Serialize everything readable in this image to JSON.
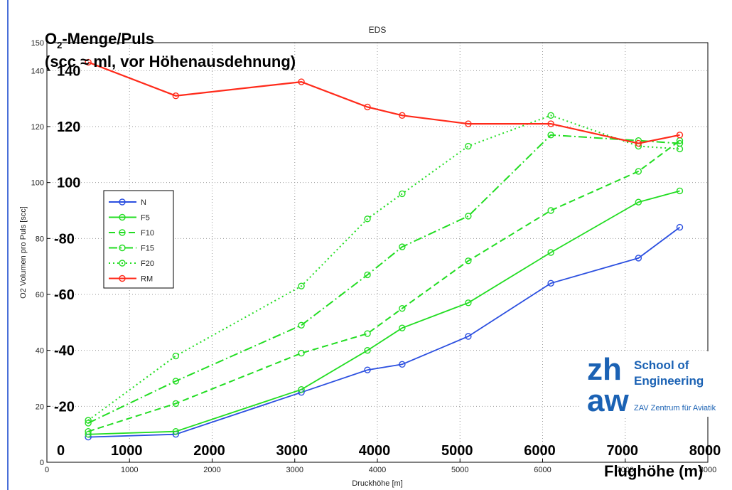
{
  "chart_data": {
    "type": "line",
    "title": "EDS",
    "xlabel": "Druckhöhe [m]",
    "ylabel": "O2 Volumen pro Puls [scc]",
    "xlim": [
      0,
      8000
    ],
    "ylim": [
      0,
      150
    ],
    "x_ticks": [
      0,
      1000,
      2000,
      3000,
      4000,
      5000,
      6000,
      7000,
      8000
    ],
    "y_ticks": [
      0,
      20,
      40,
      60,
      80,
      100,
      120,
      140,
      150
    ],
    "grid": true,
    "legend_position": "left",
    "x": [
      500,
      1560,
      3080,
      3880,
      4300,
      5100,
      6100,
      7160,
      7660
    ],
    "series": [
      {
        "name": "N",
        "color": "#2b4fe0",
        "style": "solid",
        "values": [
          9,
          10,
          25,
          33,
          35,
          45,
          64,
          73,
          84
        ]
      },
      {
        "name": "F5",
        "color": "#22dd22",
        "style": "solid",
        "values": [
          10,
          11,
          26,
          40,
          48,
          57,
          75,
          93,
          97
        ]
      },
      {
        "name": "F10",
        "color": "#22dd22",
        "style": "dashed",
        "values": [
          11,
          21,
          39,
          46,
          55,
          72,
          90,
          104,
          115
        ]
      },
      {
        "name": "F15",
        "color": "#22dd22",
        "style": "dashdot",
        "values": [
          14,
          29,
          49,
          67,
          77,
          88,
          117,
          115,
          114
        ]
      },
      {
        "name": "F20",
        "color": "#22dd22",
        "style": "dotted",
        "values": [
          15,
          38,
          63,
          87,
          96,
          113,
          124,
          113,
          112
        ]
      },
      {
        "name": "RM",
        "color": "#ff2a1a",
        "style": "solid",
        "values": [
          143,
          131,
          136,
          127,
          124,
          121,
          121,
          114,
          117
        ]
      }
    ]
  },
  "annotations": {
    "heading_line1_prefix": "O",
    "heading_line1_sub": "2",
    "heading_line1_suffix": "-Menge/Puls",
    "heading_line2": "(scc ≈ ml, vor Höhenausdehnung)",
    "bold_y_labels": [
      "0",
      "-20",
      "-40",
      "-60",
      "-80",
      "100",
      "120",
      "140"
    ],
    "bold_x_labels": [
      "1000",
      "2000",
      "3000",
      "4000",
      "5000",
      "6000",
      "7000",
      "8000"
    ],
    "bold_x_title": "Flughöhe (m)"
  },
  "logo": {
    "line1": "zh",
    "line2": "aw",
    "school": "School of",
    "engineering": "Engineering",
    "center": "ZAV Zentrum für Aviatik",
    "color": "#1b62b4"
  }
}
